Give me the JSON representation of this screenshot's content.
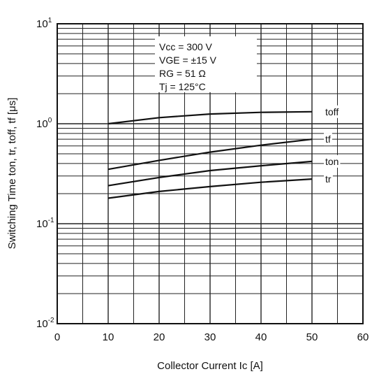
{
  "chart_data": {
    "type": "line",
    "scale_y": "log",
    "xlabel": "Collector Current Ic [A]",
    "ylabel": "Switching Time ton, tr, toff, tf [μs]",
    "xlim": [
      0,
      60
    ],
    "ylim": [
      0.01,
      10
    ],
    "grid": true,
    "x_ticks": [
      "0",
      "10",
      "20",
      "30",
      "40",
      "50",
      "60"
    ],
    "y_ticks": [
      {
        "base": "10",
        "exp": "-2",
        "value": 0.01
      },
      {
        "base": "10",
        "exp": "-1",
        "value": 0.1
      },
      {
        "base": "10",
        "exp": "0",
        "value": 1
      },
      {
        "base": "10",
        "exp": "1",
        "value": 10
      }
    ],
    "conditions": [
      "Vcc = 300 V",
      "VGE = ±15  V",
      "RG  =  51  Ω",
      "Tj   = 125°C"
    ],
    "series": [
      {
        "name": "toff",
        "x": [
          10,
          20,
          30,
          40,
          50
        ],
        "y": [
          1.0,
          1.15,
          1.25,
          1.3,
          1.32
        ]
      },
      {
        "name": "tf",
        "x": [
          10,
          20,
          30,
          40,
          50
        ],
        "y": [
          0.35,
          0.43,
          0.52,
          0.61,
          0.7
        ]
      },
      {
        "name": "ton",
        "x": [
          10,
          20,
          30,
          40,
          50
        ],
        "y": [
          0.24,
          0.29,
          0.34,
          0.38,
          0.42
        ]
      },
      {
        "name": "tr",
        "x": [
          10,
          20,
          30,
          40,
          50
        ],
        "y": [
          0.18,
          0.21,
          0.235,
          0.26,
          0.28
        ]
      }
    ]
  }
}
